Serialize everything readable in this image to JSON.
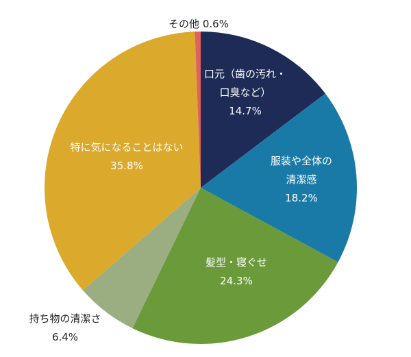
{
  "chart_data": {
    "type": "pie",
    "categories": [
      "口元（歯の汚れ・\n口臭など）",
      "服装や全体の\n清潔感",
      "髪型・寝ぐせ",
      "持ち物の清潔さ",
      "特に気になることはない",
      "その他"
    ],
    "values": [
      14.7,
      18.2,
      24.3,
      6.4,
      35.8,
      0.6
    ],
    "value_labels": [
      "14.7%",
      "18.2%",
      "24.3%",
      "6.4%",
      "35.8%",
      "0.6%"
    ],
    "colors": [
      "#1d2b56",
      "#1a7aa7",
      "#6b9a3b",
      "#9aae82",
      "#dba92b",
      "#e0625f"
    ]
  }
}
